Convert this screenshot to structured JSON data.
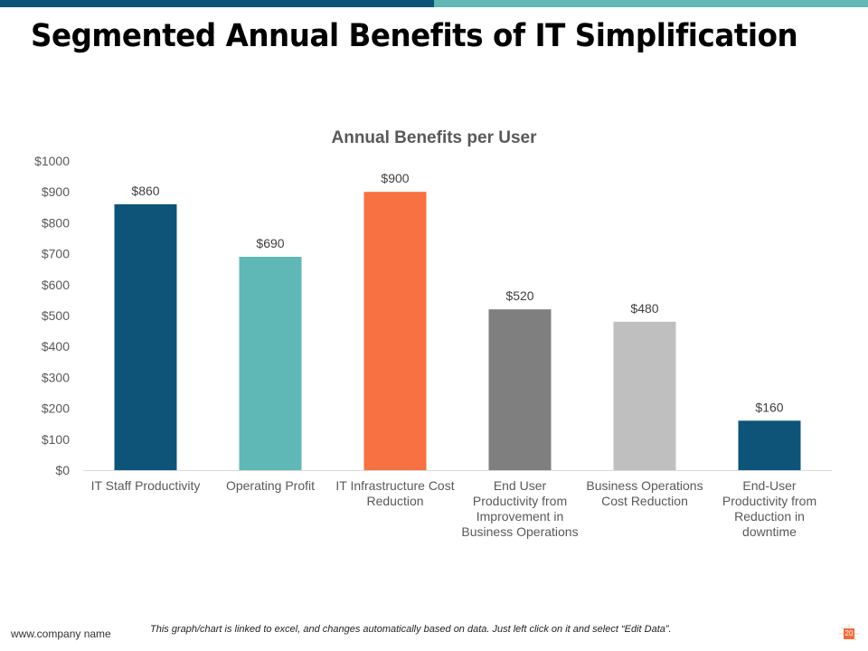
{
  "slide": {
    "title": "Segmented Annual Benefits of IT Simplification",
    "footer_left": "www.company  name",
    "footer_note": "This graph/chart is linked to excel, and changes automatically based on data. Just left click on it and select “Edit Data”.",
    "page_number": "20",
    "colors": {
      "top_bar_left": "#0e5478",
      "top_bar_right": "#5fb8b5",
      "badge": "#f26b3a"
    }
  },
  "chart_data": {
    "type": "bar",
    "title": "Annual Benefits per User",
    "xlabel": "",
    "ylabel": "",
    "ylim": [
      0,
      1000
    ],
    "yticks": [
      0,
      100,
      200,
      300,
      400,
      500,
      600,
      700,
      800,
      900,
      1000
    ],
    "ytick_labels": [
      "$0",
      "$100",
      "$200",
      "$300",
      "$400",
      "$500",
      "$600",
      "$700",
      "$800",
      "$900",
      "$1000"
    ],
    "grid": false,
    "legend": "none",
    "categories": [
      [
        "IT Staff Productivity"
      ],
      [
        "Operating Profit"
      ],
      [
        "IT Infrastructure Cost",
        "Reduction"
      ],
      [
        "End User",
        "Productivity from",
        "Improvement in",
        "Business Operations"
      ],
      [
        "Business Operations",
        "Cost Reduction"
      ],
      [
        "End-User",
        "Productivity from",
        "Reduction in",
        "downtime"
      ]
    ],
    "values": [
      860,
      690,
      900,
      520,
      480,
      160
    ],
    "data_labels": [
      "$860",
      "$690",
      "$900",
      "$520",
      "$480",
      "$160"
    ],
    "bar_colors": [
      "#0e5478",
      "#5fb8b5",
      "#f77142",
      "#7f7f7f",
      "#bfbfbf",
      "#0e5478"
    ]
  }
}
